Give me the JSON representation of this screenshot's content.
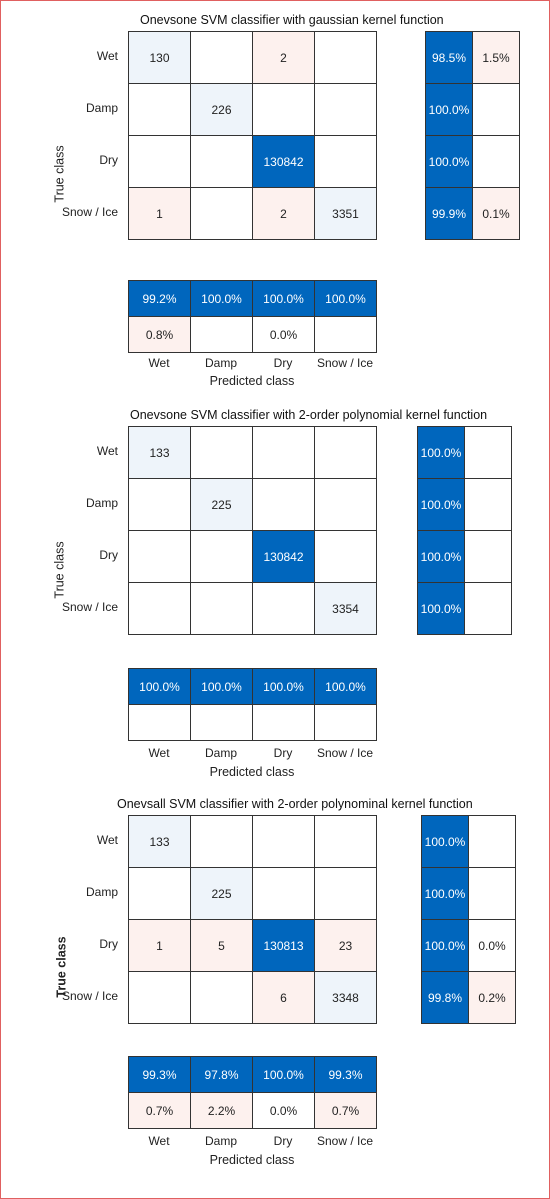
{
  "chart_data": [
    {
      "type": "table",
      "title": "Onevsone SVM classifier with gaussian kernel function",
      "xlabel": "Predicted class",
      "ylabel": "True class",
      "classes": [
        "Wet",
        "Damp",
        "Dry",
        "Snow / Ice"
      ],
      "counts": [
        [
          130,
          null,
          2,
          null
        ],
        [
          null,
          226,
          null,
          null
        ],
        [
          null,
          null,
          130842,
          null
        ],
        [
          1,
          null,
          2,
          3351
        ]
      ],
      "row_summary": [
        [
          "98.5%",
          "1.5%"
        ],
        [
          "100.0%",
          ""
        ],
        [
          "100.0%",
          ""
        ],
        [
          "99.9%",
          "0.1%"
        ]
      ],
      "col_summary": [
        [
          "99.2%",
          "100.0%",
          "100.0%",
          "100.0%"
        ],
        [
          "0.8%",
          "",
          "0.0%",
          ""
        ]
      ]
    },
    {
      "type": "table",
      "title": "Onevsone SVM classifier with 2-order polynomial kernel function",
      "xlabel": "Predicted class",
      "ylabel": "True class",
      "classes": [
        "Wet",
        "Damp",
        "Dry",
        "Snow / Ice"
      ],
      "counts": [
        [
          133,
          null,
          null,
          null
        ],
        [
          null,
          225,
          null,
          null
        ],
        [
          null,
          null,
          130842,
          null
        ],
        [
          null,
          null,
          null,
          3354
        ]
      ],
      "row_summary": [
        [
          "100.0%",
          ""
        ],
        [
          "100.0%",
          ""
        ],
        [
          "100.0%",
          ""
        ],
        [
          "100.0%",
          ""
        ]
      ],
      "col_summary": [
        [
          "100.0%",
          "100.0%",
          "100.0%",
          "100.0%"
        ],
        [
          "",
          "",
          "",
          ""
        ]
      ]
    },
    {
      "type": "table",
      "title": "Onevsall SVM classifier with 2-order polynominal kernel function",
      "xlabel": "Predicted class",
      "ylabel": "True class",
      "classes": [
        "Wet",
        "Damp",
        "Dry",
        "Snow / Ice"
      ],
      "counts": [
        [
          133,
          null,
          null,
          null
        ],
        [
          null,
          225,
          null,
          null
        ],
        [
          1,
          5,
          130813,
          23
        ],
        [
          null,
          null,
          6,
          3348
        ]
      ],
      "row_summary": [
        [
          "100.0%",
          ""
        ],
        [
          "100.0%",
          ""
        ],
        [
          "100.0%",
          "0.0%"
        ],
        [
          "99.8%",
          "0.2%"
        ]
      ],
      "col_summary": [
        [
          "99.3%",
          "97.8%",
          "100.0%",
          "99.3%"
        ],
        [
          "0.7%",
          "2.2%",
          "0.0%",
          "0.7%"
        ]
      ]
    }
  ],
  "colors": {
    "dark_blue": "#0066bd",
    "light_blue": "#eef4fa",
    "light_pink": "#fdf1ee",
    "white": "#ffffff"
  }
}
